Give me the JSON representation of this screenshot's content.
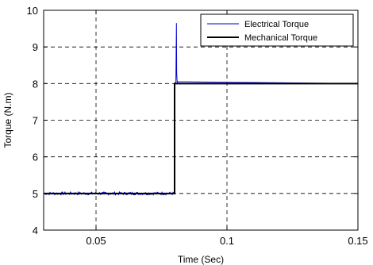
{
  "chart_data": {
    "type": "line",
    "title": "",
    "xlabel": "Time (Sec)",
    "ylabel": "Torque (N.m)",
    "xlim": [
      0.03,
      0.15
    ],
    "ylim": [
      4,
      10
    ],
    "xticks": [
      0.05,
      0.1,
      0.15
    ],
    "xtick_labels": [
      "0.05",
      "0.1",
      "0.15"
    ],
    "yticks": [
      4,
      5,
      6,
      7,
      8,
      9,
      10
    ],
    "ytick_labels": [
      "4",
      "5",
      "6",
      "7",
      "8",
      "9",
      "10"
    ],
    "grid": true,
    "legend_position": "top-right",
    "series": [
      {
        "name": "Electrical Torque",
        "color": "#0000cc",
        "x": [
          0.03,
          0.08,
          0.08,
          0.0805,
          0.0807,
          0.0808,
          0.081,
          0.0812,
          0.15
        ],
        "y": [
          5.0,
          5.0,
          8.0,
          8.05,
          9.65,
          8.3,
          8.0,
          8.05,
          8.0
        ],
        "noise_amplitude": 0.04
      },
      {
        "name": "Mechanical Torque",
        "color": "#000000",
        "x": [
          0.03,
          0.08,
          0.08,
          0.15
        ],
        "y": [
          5.0,
          5.0,
          8.0,
          8.0
        ]
      }
    ]
  }
}
